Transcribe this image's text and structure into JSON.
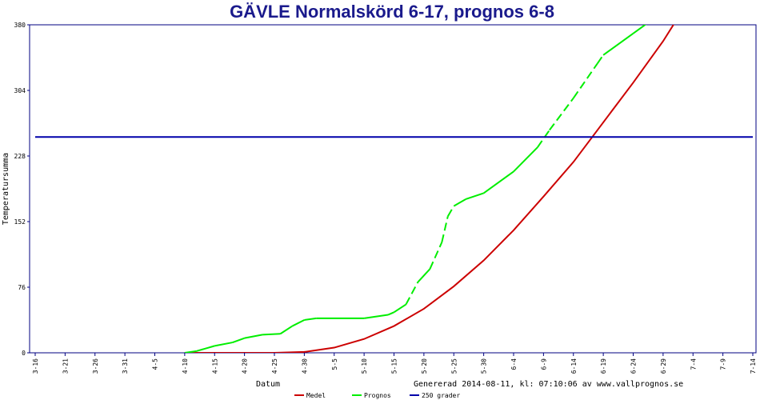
{
  "chart_data": {
    "type": "line",
    "title": "GÄVLE Normalskörd 6-17, prognos 6-8",
    "xlabel": "Datum",
    "ylabel": "Temperatursumma",
    "generated": "Genererad 2014-08-11, kl: 07:10:06 av www.vallprognos.se",
    "ylim": [
      0,
      380
    ],
    "yticks": [
      0,
      76,
      152,
      228,
      304,
      380
    ],
    "x_day_range": [
      "3-16",
      "7-14"
    ],
    "xticks": [
      "3-16",
      "3-21",
      "3-26",
      "3-31",
      "4-5",
      "4-10",
      "4-15",
      "4-20",
      "4-25",
      "4-30",
      "5-5",
      "5-10",
      "5-15",
      "5-20",
      "5-25",
      "5-30",
      "6-4",
      "6-9",
      "6-14",
      "6-19",
      "6-24",
      "6-29",
      "7-4",
      "7-9",
      "7-14"
    ],
    "grid": false,
    "legend_position": "bottom",
    "series": [
      {
        "name": "Medel",
        "color": "#cc0000",
        "dash": "solid",
        "points": [
          [
            "4-10",
            0
          ],
          [
            "4-25",
            0
          ],
          [
            "4-30",
            1
          ],
          [
            "5-5",
            6
          ],
          [
            "5-10",
            16
          ],
          [
            "5-15",
            31
          ],
          [
            "5-20",
            51
          ],
          [
            "5-25",
            77
          ],
          [
            "5-30",
            107
          ],
          [
            "6-4",
            142
          ],
          [
            "6-9",
            181
          ],
          [
            "6-14",
            221
          ],
          [
            "6-19",
            267
          ],
          [
            "6-24",
            313
          ],
          [
            "6-29",
            361
          ],
          [
            "7-3",
            405
          ]
        ]
      },
      {
        "name": "Prognos",
        "color": "#00ee00",
        "dash": "dashed-between",
        "points": [
          [
            "4-10",
            0
          ],
          [
            "4-12",
            2
          ],
          [
            "4-15",
            8
          ],
          [
            "4-18",
            12
          ],
          [
            "4-20",
            17
          ],
          [
            "4-23",
            21
          ],
          [
            "4-26",
            22
          ],
          [
            "4-28",
            31
          ],
          [
            "4-30",
            38
          ],
          [
            "5-2",
            40
          ],
          [
            "5-10",
            40
          ],
          [
            "5-14",
            44
          ],
          [
            "5-15",
            47
          ],
          [
            "5-17",
            56
          ],
          [
            "5-19",
            82
          ],
          [
            "5-21",
            97
          ],
          [
            "5-23",
            128
          ],
          [
            "5-24",
            158
          ],
          [
            "5-25",
            170
          ],
          [
            "5-27",
            178
          ],
          [
            "5-30",
            185
          ],
          [
            "6-4",
            210
          ],
          [
            "6-8",
            238
          ],
          [
            "6-10",
            258
          ],
          [
            "6-14",
            295
          ],
          [
            "6-18",
            335
          ],
          [
            "6-19",
            345
          ],
          [
            "6-24",
            370
          ],
          [
            "6-29",
            395
          ],
          [
            "7-1",
            405
          ]
        ]
      },
      {
        "name": "250 grader",
        "color": "#0000aa",
        "dash": "solid",
        "points": [
          [
            "3-16",
            250
          ],
          [
            "7-14",
            250
          ]
        ]
      }
    ]
  }
}
